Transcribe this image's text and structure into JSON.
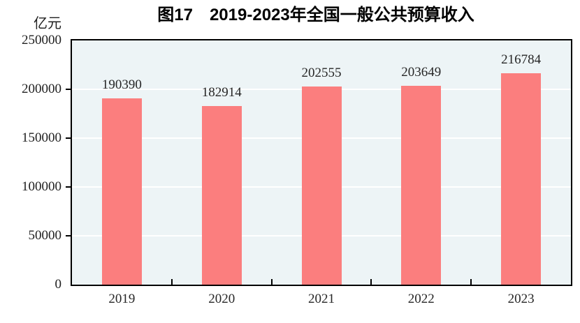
{
  "chart_data": {
    "type": "bar",
    "title": "图17　2019-2023年全国一般公共预算收入",
    "unit_label": "亿元",
    "categories": [
      "2019",
      "2020",
      "2021",
      "2022",
      "2023"
    ],
    "values": [
      190390,
      182914,
      202555,
      203649,
      216784
    ],
    "value_labels": [
      "190390",
      "182914",
      "202555",
      "203649",
      "216784"
    ],
    "ylim": [
      0,
      250000
    ],
    "yticks": [
      0,
      50000,
      100000,
      150000,
      200000,
      250000
    ],
    "ytick_labels": [
      "0",
      "50000",
      "100000",
      "150000",
      "200000",
      "250000"
    ],
    "grid": "horizontal",
    "legend": "none",
    "colors": {
      "bar": "#FB7E7E",
      "plot_background": "#EDF4F6",
      "gridline": "#FFFFFF",
      "axis": "#000000",
      "text": "#262626"
    }
  }
}
